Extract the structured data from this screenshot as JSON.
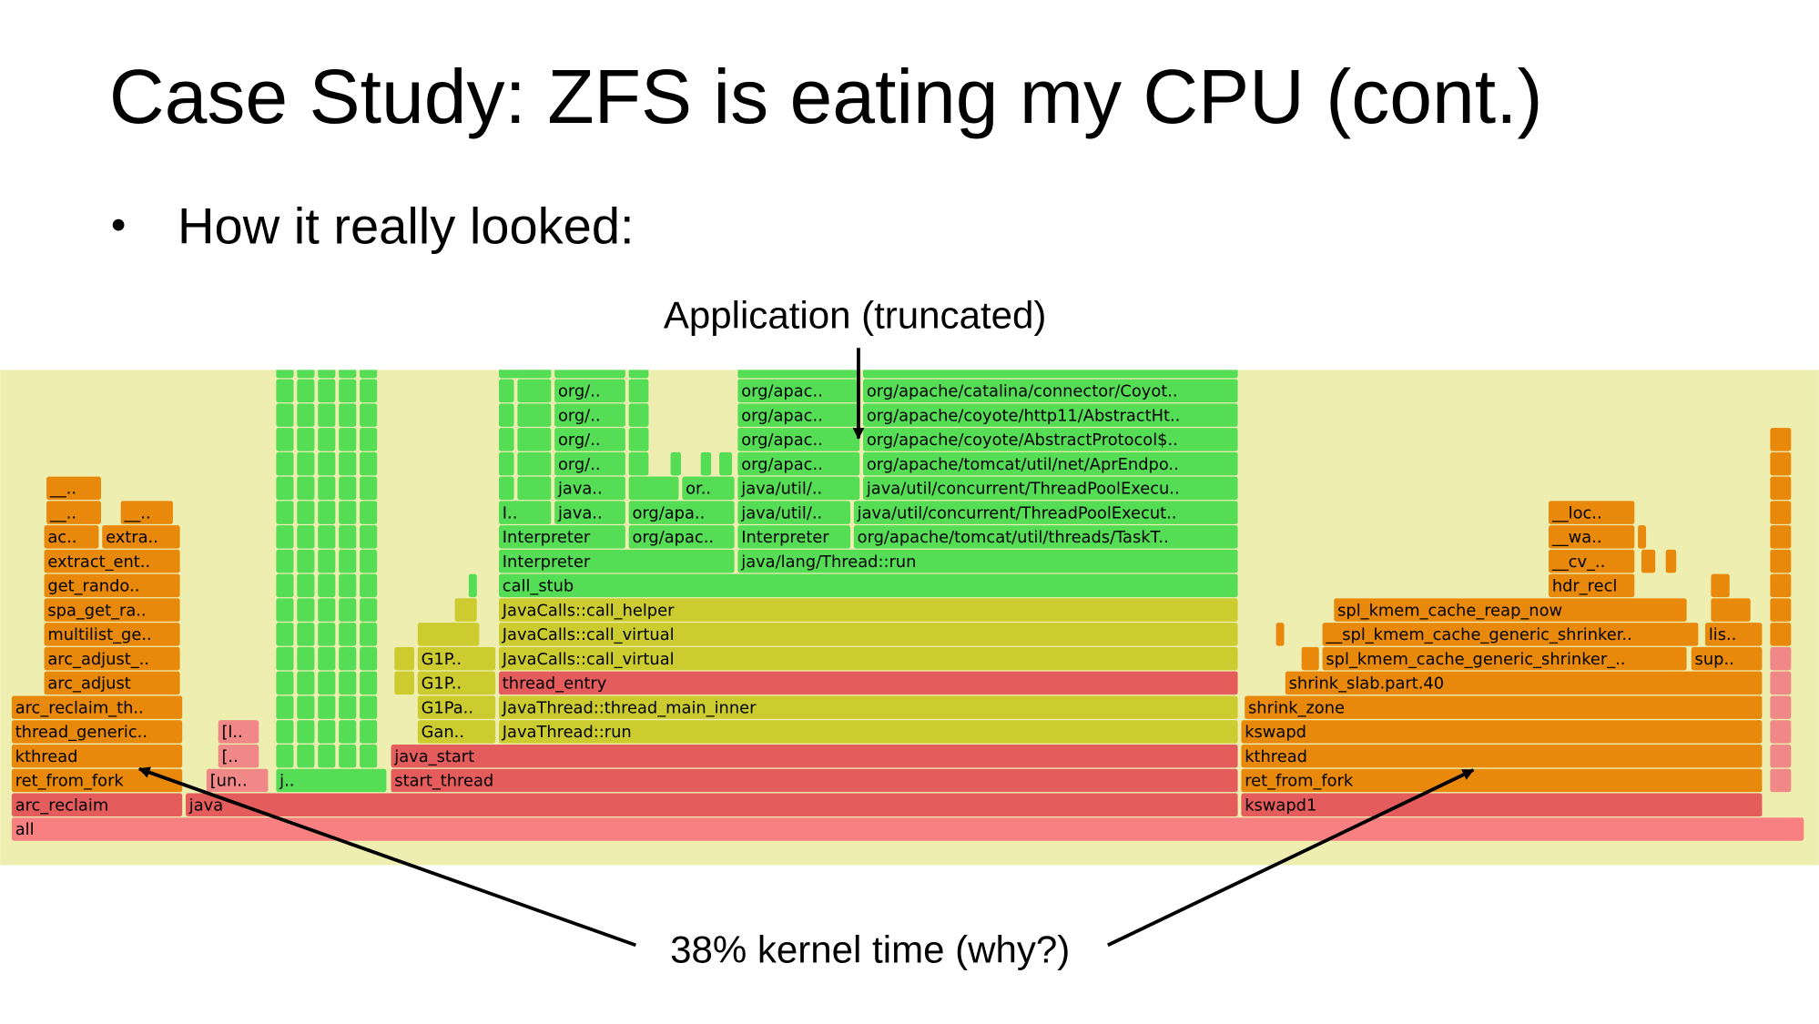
{
  "title": "Case Study: ZFS is eating my CPU (cont.)",
  "bullet": "How it really looked:",
  "annotations": {
    "application": "Application (truncated)",
    "kernel": "38% kernel time (why?)"
  },
  "flame_graph": {
    "frames": [
      "all",
      "arc_reclaim",
      "java",
      "kswapd1",
      "ret_from_fork",
      "[un..",
      "j..",
      "start_thread",
      "ret_from_fork",
      "kthread",
      "[..",
      "java_start",
      "kthread",
      "thread_generic..",
      "[l..",
      "Gan..",
      "JavaThread::run",
      "kswapd",
      "arc_reclaim_th..",
      "G1Pa..",
      "JavaThread::thread_main_inner",
      "shrink_zone",
      "arc_adjust",
      "G1P..",
      "thread_entry",
      "shrink_slab.part.40",
      "arc_adjust_..",
      "G1P..",
      "JavaCalls::call_virtual",
      "spl_kmem_cache_generic_shrinker_..",
      "sup..",
      "multilist_ge..",
      "JavaCalls::call_virtual",
      "__spl_kmem_cache_generic_shrinker..",
      "lis..",
      "spa_get_ra..",
      "JavaCalls::call_helper",
      "spl_kmem_cache_reap_now",
      "get_rando..",
      "call_stub",
      "hdr_recl",
      "extract_ent..",
      "Interpreter",
      "java/lang/Thread::run",
      "__cv_..",
      "ac..",
      "extra..",
      "Interpreter",
      "org/apac..",
      "Interpreter",
      "org/apache/tomcat/util/threads/TaskT..",
      "__wa..",
      "__..",
      "__..",
      "I..",
      "java..",
      "org/apa..",
      "java/util/..",
      "java/util/concurrent/ThreadPoolExecut..",
      "__loc..",
      "__..",
      "java..",
      "or..",
      "java/util/..",
      "java/util/concurrent/ThreadPoolExecu..",
      "org/..",
      "org/apac..",
      "org/apache/tomcat/util/net/AprEndpo..",
      "org/..",
      "org/apac..",
      "org/apache/coyote/AbstractProtocol$..",
      "org/..",
      "org/apac..",
      "org/apache/coyote/http11/AbstractHt..",
      "org/..",
      "org/apac..",
      "org/apache/catalina/connector/Coyot.."
    ]
  }
}
